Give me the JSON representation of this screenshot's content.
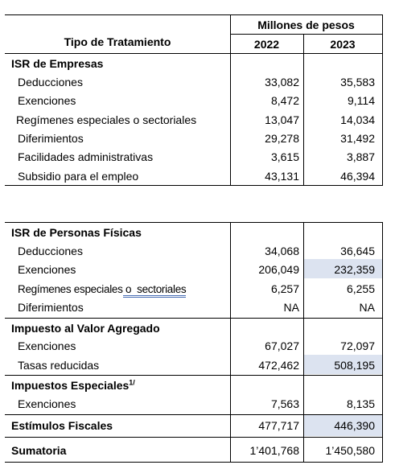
{
  "header": {
    "col_label": "Tipo de Tratamiento",
    "group_label": "Millones de pesos",
    "year1": "2022",
    "year2": "2023"
  },
  "sections": {
    "isr_empresas": {
      "title": "ISR de Empresas",
      "rows": [
        {
          "label": "Deducciones",
          "v2022": "33,082",
          "v2023": "35,583"
        },
        {
          "label": "Exenciones",
          "v2022": "8,472",
          "v2023": "9,114"
        },
        {
          "label": "Regímenes especiales o sectoriales",
          "v2022": "13,047",
          "v2023": "14,034"
        },
        {
          "label": "Diferimientos",
          "v2022": "29,278",
          "v2023": "31,492"
        },
        {
          "label": "Facilidades administrativas",
          "v2022": "3,615",
          "v2023": "3,887"
        },
        {
          "label": "Subsidio para el empleo",
          "v2022": "43,131",
          "v2023": "46,394"
        }
      ]
    },
    "isr_pf": {
      "title": "ISR de Personas Físicas",
      "rows": [
        {
          "label": "Deducciones",
          "v2022": "34,068",
          "v2023": "36,645"
        },
        {
          "label": "Exenciones",
          "v2022": "206,049",
          "v2023": "232,359"
        },
        {
          "label_a": "Regímenes especiales",
          "label_b": " o  sectoriales",
          "v2022": "6,257",
          "v2023": "6,255"
        },
        {
          "label": "Diferimientos",
          "v2022": "NA",
          "v2023": "NA"
        }
      ]
    },
    "iva": {
      "title": "Impuesto al Valor Agregado",
      "rows": [
        {
          "label": "Exenciones",
          "v2022": "67,027",
          "v2023": "72,097"
        },
        {
          "label": "Tasas reducidas",
          "v2022": "472,462",
          "v2023": "508,195"
        }
      ]
    },
    "ieps": {
      "title": "Impuestos Especiales",
      "sup": "1/",
      "rows": [
        {
          "label": "Exenciones",
          "v2022": "7,563",
          "v2023": "8,135"
        }
      ]
    },
    "estimulos": {
      "label": "Estímulos Fiscales",
      "v2022": "477,717",
      "v2023": "446,390"
    },
    "sumatoria": {
      "label": "Sumatoria",
      "v2022": "1’401,768",
      "v2023": "1’450,580"
    }
  },
  "colors": {
    "highlight": "#dce3f0",
    "spellcheck": "#4a6fb5"
  }
}
